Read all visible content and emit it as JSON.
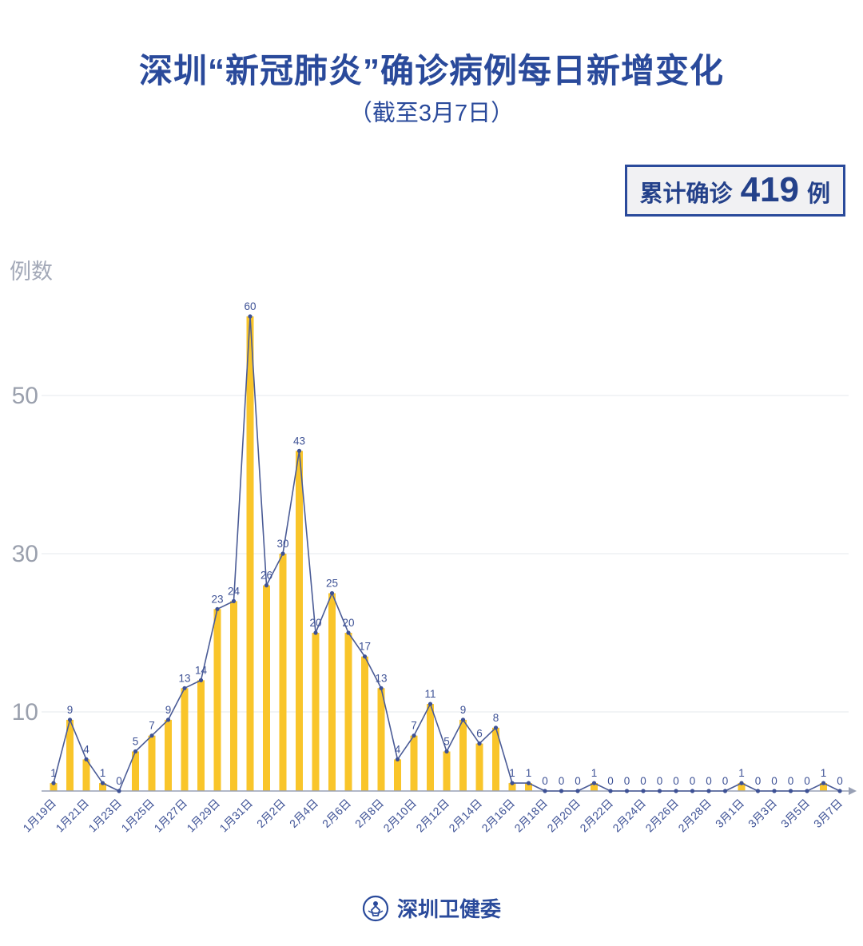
{
  "header": {
    "title": "深圳“新冠肺炎”确诊病例每日新增变化",
    "subtitle": "（截至3月7日）"
  },
  "badge": {
    "prefix": "累计确诊",
    "value": "419",
    "suffix": "例"
  },
  "footer": {
    "org": "深圳卫健委"
  },
  "chart_data": {
    "type": "bar+line",
    "title": "深圳新冠肺炎确诊病例每日新增变化（截至3月7日）",
    "ylabel": "例数",
    "ylim": [
      0,
      62
    ],
    "yticks": [
      10,
      30,
      50
    ],
    "total": 419,
    "xtick_every": 2,
    "categories": [
      "1月19日",
      "1月20日",
      "1月21日",
      "1月22日",
      "1月23日",
      "1月24日",
      "1月25日",
      "1月26日",
      "1月27日",
      "1月28日",
      "1月29日",
      "1月30日",
      "1月31日",
      "2月1日",
      "2月2日",
      "2月3日",
      "2月4日",
      "2月5日",
      "2月6日",
      "2月7日",
      "2月8日",
      "2月9日",
      "2月10日",
      "2月11日",
      "2月12日",
      "2月13日",
      "2月14日",
      "2月15日",
      "2月16日",
      "2月17日",
      "2月18日",
      "2月19日",
      "2月20日",
      "2月21日",
      "2月22日",
      "2月23日",
      "2月24日",
      "2月25日",
      "2月26日",
      "2月27日",
      "2月28日",
      "2月29日",
      "3月1日",
      "3月2日",
      "3月3日",
      "3月4日",
      "3月5日",
      "3月6日",
      "3月7日"
    ],
    "values": [
      1,
      9,
      4,
      1,
      0,
      5,
      7,
      9,
      13,
      14,
      23,
      24,
      60,
      26,
      30,
      43,
      20,
      25,
      20,
      17,
      13,
      4,
      7,
      11,
      5,
      9,
      6,
      8,
      1,
      1,
      0,
      0,
      0,
      1,
      0,
      0,
      0,
      0,
      0,
      0,
      0,
      0,
      1,
      0,
      0,
      0,
      0,
      1,
      0
    ],
    "colors": {
      "bar": "#f9c52a",
      "line": "#4a5b96",
      "dot": "#3d5195",
      "value_label": "#3d5195",
      "tick_label": "#3d5195",
      "ytick_label": "#9aa0ad",
      "grid": "#eef0f4",
      "axis": "#98a0b5"
    }
  }
}
